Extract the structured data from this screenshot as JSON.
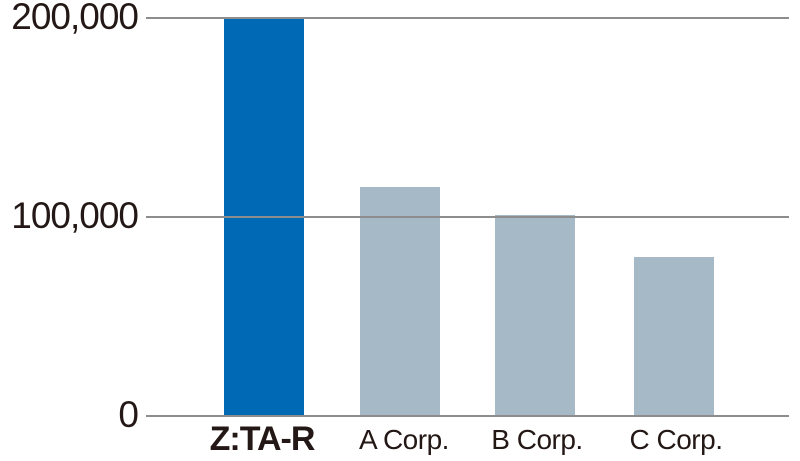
{
  "chart_data": {
    "type": "bar",
    "title": "",
    "xlabel": "",
    "ylabel": "",
    "categories": [
      "Z:TA-R",
      "A Corp.",
      "B Corp.",
      "C Corp."
    ],
    "values": [
      200000,
      115000,
      101000,
      80000
    ],
    "highlight_index": 0,
    "ylim": [
      0,
      200000
    ],
    "yticks": [
      {
        "label": "200,000",
        "value": 200000
      },
      {
        "label": "100,000",
        "value": 100000
      },
      {
        "label": "0",
        "value": 0
      }
    ],
    "grid": true,
    "legend_position": "none",
    "colors": {
      "highlight_bar": "#0069b6",
      "default_bar": "#a5bac6",
      "gridline": "#8d8d8d",
      "axis_line": "#8d8d8d",
      "text": "#231815"
    }
  }
}
